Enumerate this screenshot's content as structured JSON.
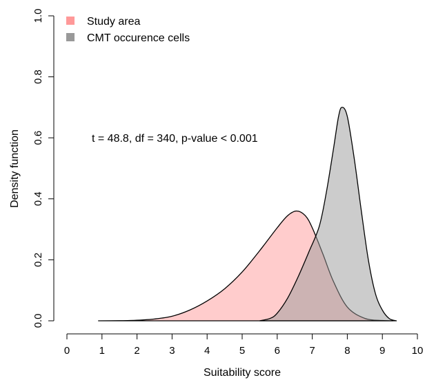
{
  "chart_data": {
    "type": "area",
    "xlabel": "Suitability score",
    "ylabel": "Density function",
    "xlim": [
      0,
      10
    ],
    "ylim": [
      0,
      1.0
    ],
    "x_ticks": [
      "0",
      "1",
      "2",
      "3",
      "4",
      "5",
      "6",
      "7",
      "8",
      "9",
      "10"
    ],
    "y_ticks": [
      "0.0",
      "0.2",
      "0.4",
      "0.6",
      "0.8",
      "1.0"
    ],
    "annotation": "t = 48.8, df = 340, p-value < 0.001",
    "legend_position": "top-left",
    "grid": false,
    "series": [
      {
        "name": "Study area",
        "color": "#ff9999",
        "x": [
          0.9,
          1.5,
          2.0,
          2.5,
          3.0,
          3.5,
          4.0,
          4.5,
          5.0,
          5.5,
          6.0,
          6.3,
          6.55,
          6.8,
          7.0,
          7.3,
          7.6,
          8.0,
          8.5,
          9.0,
          9.3
        ],
        "y": [
          0.0,
          0.0005,
          0.002,
          0.006,
          0.015,
          0.035,
          0.065,
          0.105,
          0.16,
          0.23,
          0.305,
          0.345,
          0.36,
          0.345,
          0.305,
          0.22,
          0.13,
          0.045,
          0.008,
          0.001,
          0.0
        ]
      },
      {
        "name": "CMT occurence cells",
        "color": "#999999",
        "x": [
          5.5,
          5.8,
          6.0,
          6.3,
          6.6,
          6.9,
          7.2,
          7.4,
          7.6,
          7.75,
          7.85,
          8.0,
          8.2,
          8.4,
          8.6,
          8.8,
          9.0,
          9.2,
          9.4
        ],
        "y": [
          0.0,
          0.008,
          0.025,
          0.075,
          0.145,
          0.225,
          0.31,
          0.42,
          0.56,
          0.67,
          0.7,
          0.67,
          0.53,
          0.36,
          0.2,
          0.09,
          0.035,
          0.007,
          0.0
        ]
      }
    ]
  }
}
